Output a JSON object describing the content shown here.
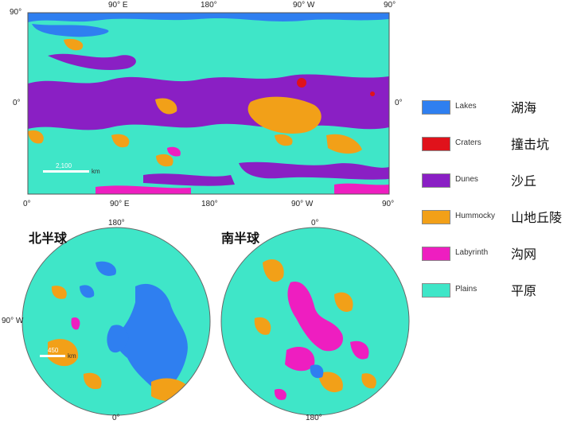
{
  "colors": {
    "lakes": "#2f7ff0",
    "craters": "#e0121b",
    "dunes": "#8a1fc4",
    "hummocky": "#f2a018",
    "labyrinth": "#ee1ec0",
    "plains": "#3fe6c8"
  },
  "top_map": {
    "lat_top": "90°",
    "lat_mid_left": "0°",
    "lat_mid_right": "0°",
    "lon_top": [
      "90° E",
      "180°",
      "90° W",
      "90°"
    ],
    "lon_bottom": [
      "0°",
      "90° E",
      "180°",
      "90° W",
      "90°"
    ],
    "scale_value": "2,100",
    "scale_unit": "km"
  },
  "north_pole": {
    "title": "北半球",
    "top_label": "180°",
    "left_label": "90° W",
    "bottom_label": "0°",
    "scale_value": "450",
    "scale_unit": "km"
  },
  "south_pole": {
    "title": "南半球",
    "top_label": "0°",
    "bottom_label": "180°"
  },
  "legend": [
    {
      "en": "Lakes",
      "zh": "湖海",
      "color_key": "lakes"
    },
    {
      "en": "Craters",
      "zh": "撞击坑",
      "color_key": "craters"
    },
    {
      "en": "Dunes",
      "zh": "沙丘",
      "color_key": "dunes"
    },
    {
      "en": "Hummocky",
      "zh": "山地丘陵",
      "color_key": "hummocky"
    },
    {
      "en": "Labyrinth",
      "zh": "沟网",
      "color_key": "labyrinth"
    },
    {
      "en": "Plains",
      "zh": "平原",
      "color_key": "plains"
    }
  ]
}
